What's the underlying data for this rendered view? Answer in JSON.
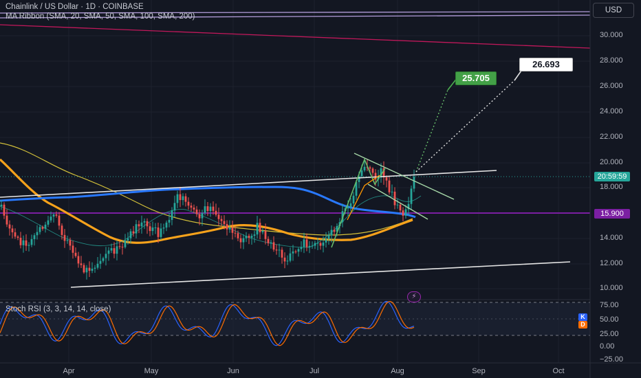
{
  "header": {
    "symbol_line": "Chainlink / US Dollar · 1D · COINBASE",
    "indicator_line": "MA Ribbon (SMA, 20, SMA, 50, SMA, 100, SMA, 200)",
    "currency_button": "USD"
  },
  "price_axis": {
    "ticks": [
      "30.000",
      "28.000",
      "26.000",
      "24.000",
      "22.000",
      "20.000",
      "18.000",
      "14.000",
      "12.000",
      "10.000"
    ],
    "current_price_tag": "20:59:59",
    "level_tag": "15.900",
    "current_color": "#26a69a",
    "level_color": "#7b1fa2"
  },
  "time_axis": {
    "labels": [
      "Apr",
      "May",
      "Jun",
      "Jul",
      "Aug",
      "Sep",
      "Oct"
    ]
  },
  "targets": {
    "green_label": "25.705",
    "white_label": "26.693"
  },
  "rsi": {
    "title": "Stoch RSI (3, 3, 14, 14, close)",
    "ticks": [
      "75.00",
      "50.00",
      "25.00",
      "0.00",
      "−25.00"
    ],
    "k_label": "K",
    "d_label": "D",
    "k_color": "#2962ff",
    "d_color": "#ff6d00"
  },
  "colors": {
    "up": "#26a69a",
    "down": "#ef5350",
    "ma_blue": "#2979ff",
    "ma_orange": "#f7a21b",
    "ma_yellow": "#d4c13a",
    "ma_teal": "#26a69a",
    "magenta": "#c2185b",
    "lavender": "#b39ddb"
  },
  "icons": {
    "alert_icon": "lightning-icon"
  }
}
